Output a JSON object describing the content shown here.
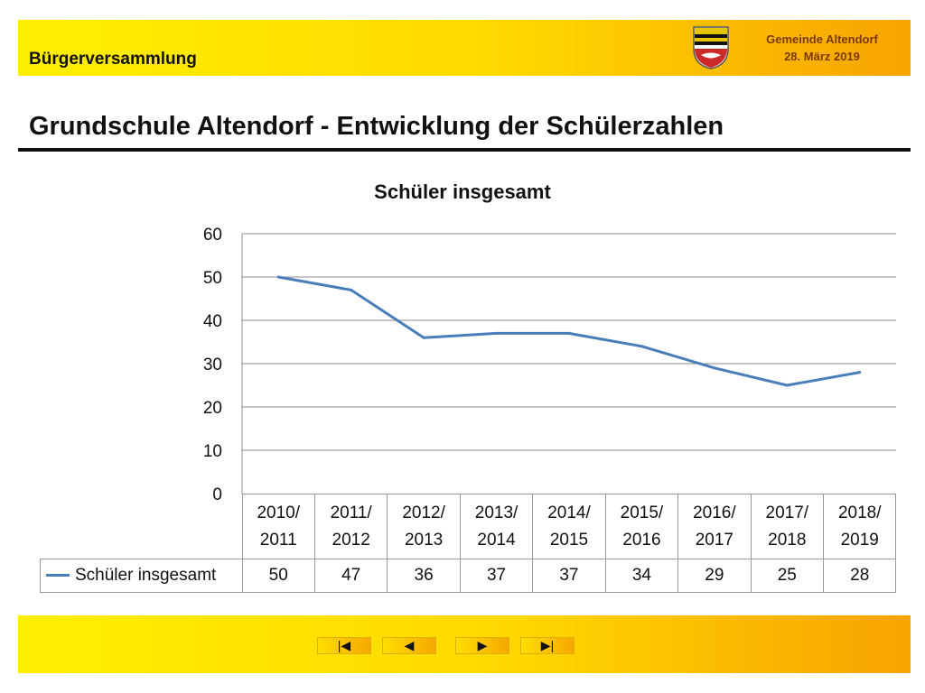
{
  "header": {
    "title": "Bürgerversammlung",
    "municipality": "Gemeinde Altendorf",
    "date": "28. März 2019"
  },
  "page_title": "Grundschule Altendorf - Entwicklung der Schülerzahlen",
  "chart_data": {
    "type": "line",
    "title": "Schüler insgesamt",
    "categories": [
      "2010/ 2011",
      "2011/ 2012",
      "2012/ 2013",
      "2013/ 2014",
      "2014/ 2015",
      "2015/ 2016",
      "2016/ 2017",
      "2017/ 2018",
      "2018/ 2019"
    ],
    "series": [
      {
        "name": "Schüler insgesamt",
        "values": [
          50,
          47,
          36,
          37,
          37,
          34,
          29,
          25,
          28
        ],
        "color": "#4a7ebb"
      }
    ],
    "ylim": [
      0,
      60
    ],
    "yticks": [
      0,
      10,
      20,
      30,
      40,
      50,
      60
    ],
    "grid": true,
    "legend": "data-table"
  },
  "colors": {
    "accent_yellow": "#ffd800",
    "accent_orange": "#f7a300",
    "line": "#4a7ebb"
  },
  "footer": {
    "nav": [
      {
        "icon": "first-slide-icon",
        "symbol": "|◀"
      },
      {
        "icon": "previous-slide-icon",
        "symbol": "◀"
      },
      {
        "icon": "next-slide-icon",
        "symbol": "▶"
      },
      {
        "icon": "last-slide-icon",
        "symbol": "▶|"
      }
    ]
  }
}
